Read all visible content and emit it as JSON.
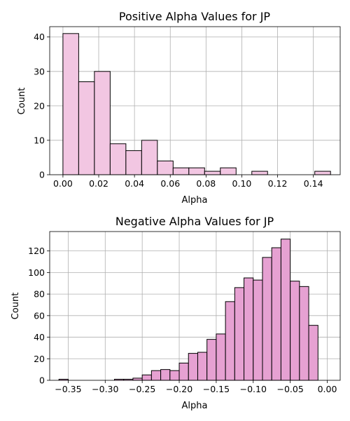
{
  "chart_data": [
    {
      "type": "bar",
      "title": "Positive Alpha Values for JP",
      "xlabel": "Alpha",
      "ylabel": "Count",
      "xlim": [
        -0.0074,
        0.155
      ],
      "ylim": [
        0,
        43
      ],
      "xticks": [
        0.0,
        0.02,
        0.04,
        0.06,
        0.08,
        0.1,
        0.12,
        0.14
      ],
      "xtick_labels": [
        "0.00",
        "0.02",
        "0.04",
        "0.06",
        "0.08",
        "0.10",
        "0.12",
        "0.14"
      ],
      "yticks": [
        0,
        10,
        20,
        30,
        40
      ],
      "ytick_labels": [
        "0",
        "10",
        "20",
        "30",
        "40"
      ],
      "grid": true,
      "bar_color": "#f2c6e2",
      "edge_color": "#000000",
      "bin_start": 0.0,
      "bin_width": 0.0088,
      "values": [
        41,
        27,
        30,
        9,
        7,
        10,
        4,
        2,
        2,
        1,
        2,
        0,
        1,
        0,
        0,
        0,
        1
      ]
    },
    {
      "type": "bar",
      "title": "Negative Alpha Values for JP",
      "xlabel": "Alpha",
      "ylabel": "Count",
      "xlim": [
        -0.375,
        0.0175
      ],
      "ylim": [
        0,
        138
      ],
      "xticks": [
        -0.35,
        -0.3,
        -0.25,
        -0.2,
        -0.15,
        -0.1,
        -0.05,
        0.0
      ],
      "xtick_labels": [
        "−0.35",
        "−0.30",
        "−0.25",
        "−0.20",
        "−0.15",
        "−0.10",
        "−0.05",
        "0.00"
      ],
      "yticks": [
        0,
        20,
        40,
        60,
        80,
        100,
        120
      ],
      "ytick_labels": [
        "0",
        "20",
        "40",
        "60",
        "80",
        "100",
        "120"
      ],
      "grid": true,
      "bar_color": "#e6a1d2",
      "edge_color": "#000000",
      "bin_start": -0.3625,
      "bin_width": 0.0125,
      "values": [
        1,
        0,
        0,
        0,
        0,
        0,
        1,
        1,
        2,
        5,
        9,
        10,
        9,
        16,
        25,
        26,
        38,
        43,
        73,
        86,
        95,
        93,
        114,
        123,
        131,
        92,
        87,
        51
      ]
    }
  ]
}
